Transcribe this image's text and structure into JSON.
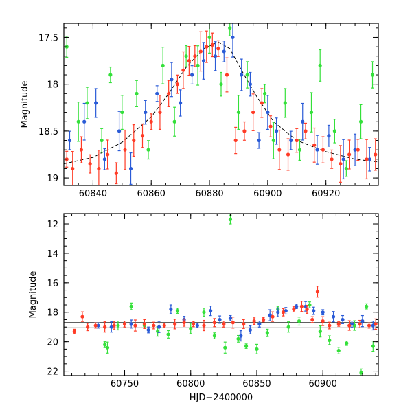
{
  "chart_data": [
    {
      "type": "scatter",
      "panel": "top",
      "title": "",
      "xlabel": "",
      "ylabel": "Magnitude",
      "xlim": [
        60830,
        60938
      ],
      "ylim": [
        19.08,
        17.35
      ],
      "y_inverted": true,
      "xticks": [
        60840,
        60860,
        60880,
        60900,
        60920
      ],
      "yticks": [
        17.5,
        18,
        18.5,
        19
      ],
      "ytick_labels": [
        "17.5",
        "18",
        "18.5",
        "19"
      ],
      "grid": false,
      "legend": "none",
      "model_curve": {
        "style": "dashed",
        "color": "#000000",
        "x": [
          60830,
          60840,
          60850,
          60860,
          60866,
          60872,
          60878,
          60883,
          60887,
          60891,
          60896,
          60902,
          60910,
          60920,
          60930,
          60938
        ],
        "y": [
          18.85,
          18.78,
          18.62,
          18.35,
          18.1,
          17.82,
          17.62,
          17.55,
          17.62,
          17.85,
          18.12,
          18.4,
          18.6,
          18.72,
          18.8,
          18.83
        ]
      },
      "series": [
        {
          "color": "#ff3b26",
          "points": [
            [
              60831,
              18.8
            ],
            [
              60833,
              18.9
            ],
            [
              60836,
              18.7
            ],
            [
              60839,
              18.85
            ],
            [
              60842,
              18.9
            ],
            [
              60845,
              18.75
            ],
            [
              60848,
              18.95
            ],
            [
              60851,
              18.7
            ],
            [
              60854,
              18.6
            ],
            [
              60857,
              18.55
            ],
            [
              60860,
              18.4
            ],
            [
              60863,
              18.3
            ],
            [
              60866,
              18.1
            ],
            [
              60869,
              18.0
            ],
            [
              60871,
              17.85
            ],
            [
              60873,
              17.75
            ],
            [
              60875,
              17.7
            ],
            [
              60877,
              17.65
            ],
            [
              60879,
              17.6
            ],
            [
              60881,
              17.58
            ],
            [
              60883,
              17.62
            ],
            [
              60886,
              17.9
            ],
            [
              60889,
              18.6
            ],
            [
              60892,
              18.5
            ],
            [
              60895,
              18.3
            ],
            [
              60898,
              18.2
            ],
            [
              60901,
              18.45
            ],
            [
              60904,
              18.7
            ],
            [
              60907,
              18.75
            ],
            [
              60910,
              18.6
            ],
            [
              60913,
              18.5
            ],
            [
              60916,
              18.65
            ],
            [
              60919,
              18.7
            ],
            [
              60922,
              18.8
            ],
            [
              60925,
              18.85
            ],
            [
              60928,
              18.75
            ],
            [
              60931,
              18.7
            ],
            [
              60934,
              18.8
            ],
            [
              60937,
              18.75
            ]
          ]
        },
        {
          "color": "#2a5bd7",
          "points": [
            [
              60832,
              18.6
            ],
            [
              60837,
              18.4
            ],
            [
              60841,
              18.2
            ],
            [
              60844,
              18.8
            ],
            [
              60849,
              18.5
            ],
            [
              60853,
              18.9
            ],
            [
              60858,
              18.3
            ],
            [
              60862,
              18.1
            ],
            [
              60867,
              17.95
            ],
            [
              60870,
              18.2
            ],
            [
              60874,
              17.9
            ],
            [
              60878,
              17.75
            ],
            [
              60882,
              17.7
            ],
            [
              60885,
              17.65
            ],
            [
              60888,
              17.5
            ],
            [
              60891,
              17.9
            ],
            [
              60894,
              18.0
            ],
            [
              60897,
              18.6
            ],
            [
              60900,
              18.3
            ],
            [
              60903,
              18.5
            ],
            [
              60908,
              18.6
            ],
            [
              60912,
              18.4
            ],
            [
              60917,
              18.7
            ],
            [
              60921,
              18.55
            ],
            [
              60926,
              18.8
            ],
            [
              60930,
              18.7
            ],
            [
              60935,
              18.8
            ]
          ]
        },
        {
          "color": "#34e03a",
          "points": [
            [
              60831,
              17.6
            ],
            [
              60835,
              18.4
            ],
            [
              60838,
              18.2
            ],
            [
              60843,
              18.6
            ],
            [
              60846,
              17.9
            ],
            [
              60850,
              18.3
            ],
            [
              60855,
              18.1
            ],
            [
              60859,
              18.7
            ],
            [
              60864,
              17.8
            ],
            [
              60868,
              18.4
            ],
            [
              60872,
              17.7
            ],
            [
              60876,
              17.8
            ],
            [
              60880,
              17.5
            ],
            [
              60884,
              18.0
            ],
            [
              60887,
              17.4
            ],
            [
              60890,
              18.3
            ],
            [
              60893,
              17.9
            ],
            [
              60899,
              18.1
            ],
            [
              60902,
              18.6
            ],
            [
              60906,
              18.2
            ],
            [
              60911,
              18.7
            ],
            [
              60915,
              18.3
            ],
            [
              60918,
              17.8
            ],
            [
              60923,
              18.5
            ],
            [
              60927,
              18.9
            ],
            [
              60932,
              18.4
            ],
            [
              60936,
              17.9
            ]
          ]
        }
      ]
    },
    {
      "type": "scatter",
      "panel": "bottom",
      "title": "",
      "xlabel": "HJD−2400000",
      "ylabel": "Magnitude",
      "xlim": [
        60704,
        60942
      ],
      "ylim": [
        22.3,
        11.3
      ],
      "y_inverted": true,
      "xticks": [
        60750,
        60800,
        60850,
        60900
      ],
      "yticks": [
        12,
        14,
        16,
        18,
        20,
        22
      ],
      "ytick_labels": [
        "12",
        "14",
        "16",
        "18",
        "20",
        "22"
      ],
      "reference_lines": [
        18.7,
        19.05
      ],
      "grid": false,
      "legend": "none",
      "series": [
        {
          "color": "#ff3b26",
          "points": [
            [
              60712,
              19.3
            ],
            [
              60718,
              18.3
            ],
            [
              60722,
              19.0
            ],
            [
              60728,
              18.9
            ],
            [
              60735,
              19.0
            ],
            [
              60742,
              18.9
            ],
            [
              60750,
              18.8
            ],
            [
              60758,
              18.9
            ],
            [
              60765,
              18.8
            ],
            [
              60772,
              18.9
            ],
            [
              60780,
              18.9
            ],
            [
              60788,
              18.8
            ],
            [
              60795,
              18.7
            ],
            [
              60802,
              18.8
            ],
            [
              60810,
              18.9
            ],
            [
              60818,
              18.7
            ],
            [
              60825,
              18.8
            ],
            [
              60832,
              18.7
            ],
            [
              60840,
              18.8
            ],
            [
              60848,
              18.6
            ],
            [
              60855,
              18.5
            ],
            [
              60862,
              18.3
            ],
            [
              60870,
              18.0
            ],
            [
              60878,
              17.8
            ],
            [
              60884,
              17.6
            ],
            [
              60888,
              17.8
            ],
            [
              60892,
              18.5
            ],
            [
              60896,
              16.6
            ],
            [
              60900,
              18.6
            ],
            [
              60905,
              18.9
            ],
            [
              60912,
              18.8
            ],
            [
              60920,
              18.9
            ],
            [
              60928,
              18.8
            ],
            [
              60935,
              18.9
            ],
            [
              60940,
              18.8
            ]
          ]
        },
        {
          "color": "#2a5bd7",
          "points": [
            [
              60730,
              18.9
            ],
            [
              60740,
              19.0
            ],
            [
              60755,
              18.8
            ],
            [
              60768,
              19.2
            ],
            [
              60776,
              19.0
            ],
            [
              60785,
              17.8
            ],
            [
              60795,
              18.5
            ],
            [
              60805,
              18.9
            ],
            [
              60815,
              17.9
            ],
            [
              60822,
              18.5
            ],
            [
              60830,
              18.4
            ],
            [
              60838,
              19.6
            ],
            [
              60845,
              19.2
            ],
            [
              60852,
              18.8
            ],
            [
              60860,
              18.2
            ],
            [
              60866,
              18.0
            ],
            [
              60872,
              17.9
            ],
            [
              60880,
              17.6
            ],
            [
              60887,
              17.6
            ],
            [
              60893,
              17.9
            ],
            [
              60900,
              18.0
            ],
            [
              60908,
              18.3
            ],
            [
              60915,
              18.5
            ],
            [
              60922,
              18.8
            ],
            [
              60930,
              18.6
            ],
            [
              60938,
              18.9
            ]
          ]
        },
        {
          "color": "#34e03a",
          "points": [
            [
              60735,
              20.2
            ],
            [
              60737,
              20.4
            ],
            [
              60745,
              18.9
            ],
            [
              60755,
              17.6
            ],
            [
              60765,
              18.9
            ],
            [
              60775,
              19.3
            ],
            [
              60783,
              19.5
            ],
            [
              60790,
              17.9
            ],
            [
              60800,
              19.1
            ],
            [
              60810,
              18.0
            ],
            [
              60818,
              19.6
            ],
            [
              60826,
              20.4
            ],
            [
              60830,
              11.7
            ],
            [
              60836,
              19.8
            ],
            [
              60842,
              20.3
            ],
            [
              60850,
              20.5
            ],
            [
              60858,
              19.4
            ],
            [
              60866,
              17.8
            ],
            [
              60874,
              19.0
            ],
            [
              60882,
              18.6
            ],
            [
              60890,
              17.5
            ],
            [
              60898,
              19.3
            ],
            [
              60905,
              19.9
            ],
            [
              60912,
              20.6
            ],
            [
              60918,
              20.1
            ],
            [
              60924,
              18.9
            ],
            [
              60929,
              22.1
            ],
            [
              60933,
              17.6
            ],
            [
              60938,
              20.3
            ]
          ]
        }
      ]
    }
  ]
}
